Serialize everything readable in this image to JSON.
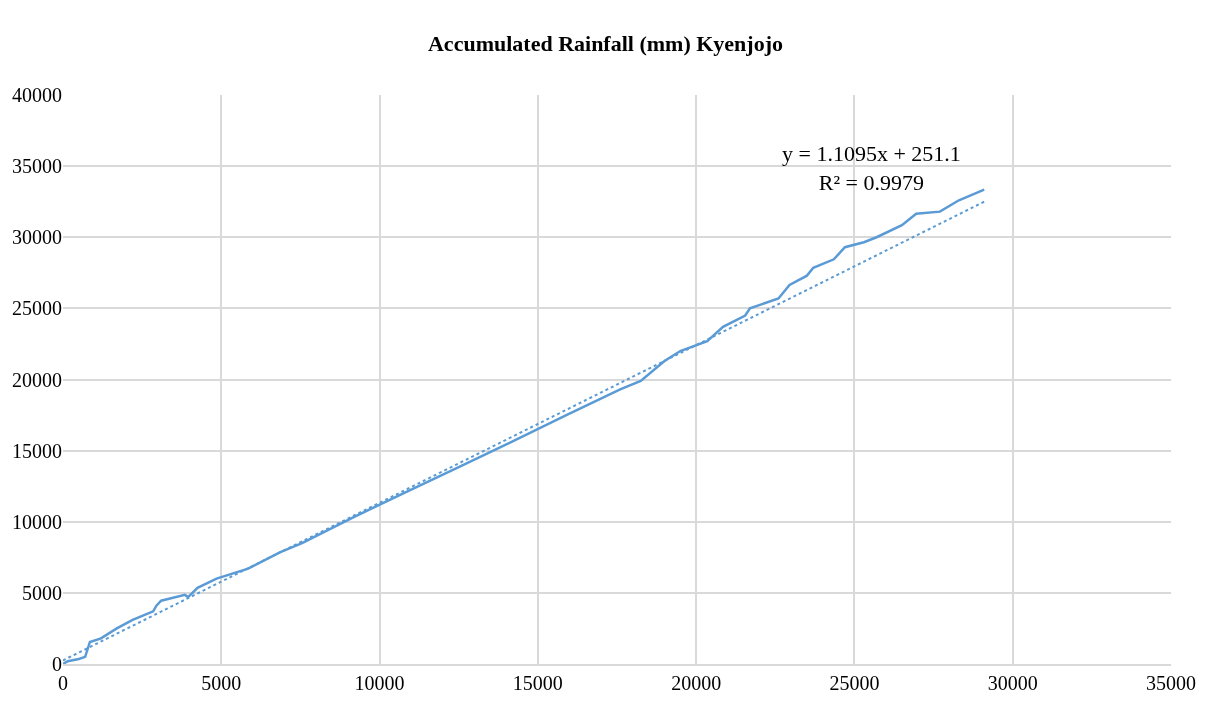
{
  "chart_data": {
    "type": "line",
    "title": "Accumulated Rainfall (mm) Kyenjojo",
    "xlim": [
      0,
      35000
    ],
    "xticks": [
      0,
      5000,
      10000,
      15000,
      20000,
      25000,
      30000,
      35000
    ],
    "ylim": [
      0,
      40000
    ],
    "yticks": [
      0,
      5000,
      10000,
      15000,
      20000,
      25000,
      30000,
      35000,
      40000
    ],
    "grid": true,
    "marker": "none",
    "series": [
      {
        "color": "#5b9bd5",
        "line_style": "solid",
        "x": [
          0,
          150,
          500,
          700,
          850,
          1200,
          1700,
          2200,
          2850,
          2950,
          3100,
          3850,
          3950,
          4250,
          4850,
          5850,
          6850,
          7550,
          9200,
          10900,
          12550,
          14250,
          15900,
          17600,
          18250,
          19000,
          19500,
          20350,
          20850,
          21550,
          21700,
          22600,
          22950,
          23500,
          23700,
          24350,
          24700,
          25300,
          25700,
          26500,
          26950,
          27700,
          28300,
          29100
        ],
        "values": [
          0,
          200,
          350,
          500,
          1550,
          1800,
          2500,
          3100,
          3700,
          4100,
          4450,
          4860,
          4700,
          5350,
          6000,
          6700,
          7850,
          8500,
          10350,
          12150,
          13900,
          15700,
          17500,
          19300,
          19900,
          21300,
          22000,
          22700,
          23700,
          24500,
          25000,
          25700,
          26650,
          27300,
          27850,
          28450,
          29300,
          29650,
          30000,
          30850,
          31650,
          31800,
          32600,
          33350
        ]
      },
      {
        "color": "#5b9bd5",
        "line_style": "dotted",
        "x": [
          0,
          29100
        ],
        "values": [
          250,
          32500
        ]
      }
    ],
    "annotations": [
      "y = 1.1095x + 251.1\nR² = 0.9979"
    ]
  }
}
